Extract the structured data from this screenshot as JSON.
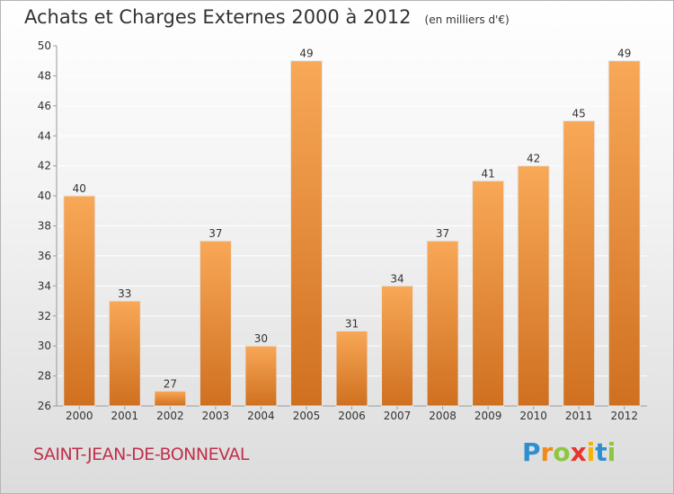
{
  "title": "Achats et Charges Externes 2000 à 2012",
  "unit": "(en milliers d'€)",
  "town": "SAINT-JEAN-DE-BONNEVAL",
  "brand": {
    "letters": [
      "P",
      "r",
      "o",
      "x",
      "i",
      "t",
      "i"
    ],
    "colors": [
      "#2e8fd0",
      "#f08a1c",
      "#8dc63f",
      "#e8342e",
      "#f4b400",
      "#2e8fd0",
      "#8dc63f"
    ]
  },
  "colors": {
    "bar_top": "#f8a857",
    "bar_bottom": "#cf7020",
    "grid": "#ffffff",
    "text": "#333333"
  },
  "chart_data": {
    "type": "bar",
    "categories": [
      "2000",
      "2001",
      "2002",
      "2003",
      "2004",
      "2005",
      "2006",
      "2007",
      "2008",
      "2009",
      "2010",
      "2011",
      "2012"
    ],
    "values": [
      40,
      33,
      27,
      37,
      30,
      49,
      31,
      34,
      37,
      41,
      42,
      45,
      49
    ],
    "ylim": [
      26,
      50
    ],
    "yticks": [
      26,
      28,
      30,
      32,
      34,
      36,
      38,
      40,
      42,
      44,
      46,
      48,
      50
    ],
    "grid": true
  }
}
